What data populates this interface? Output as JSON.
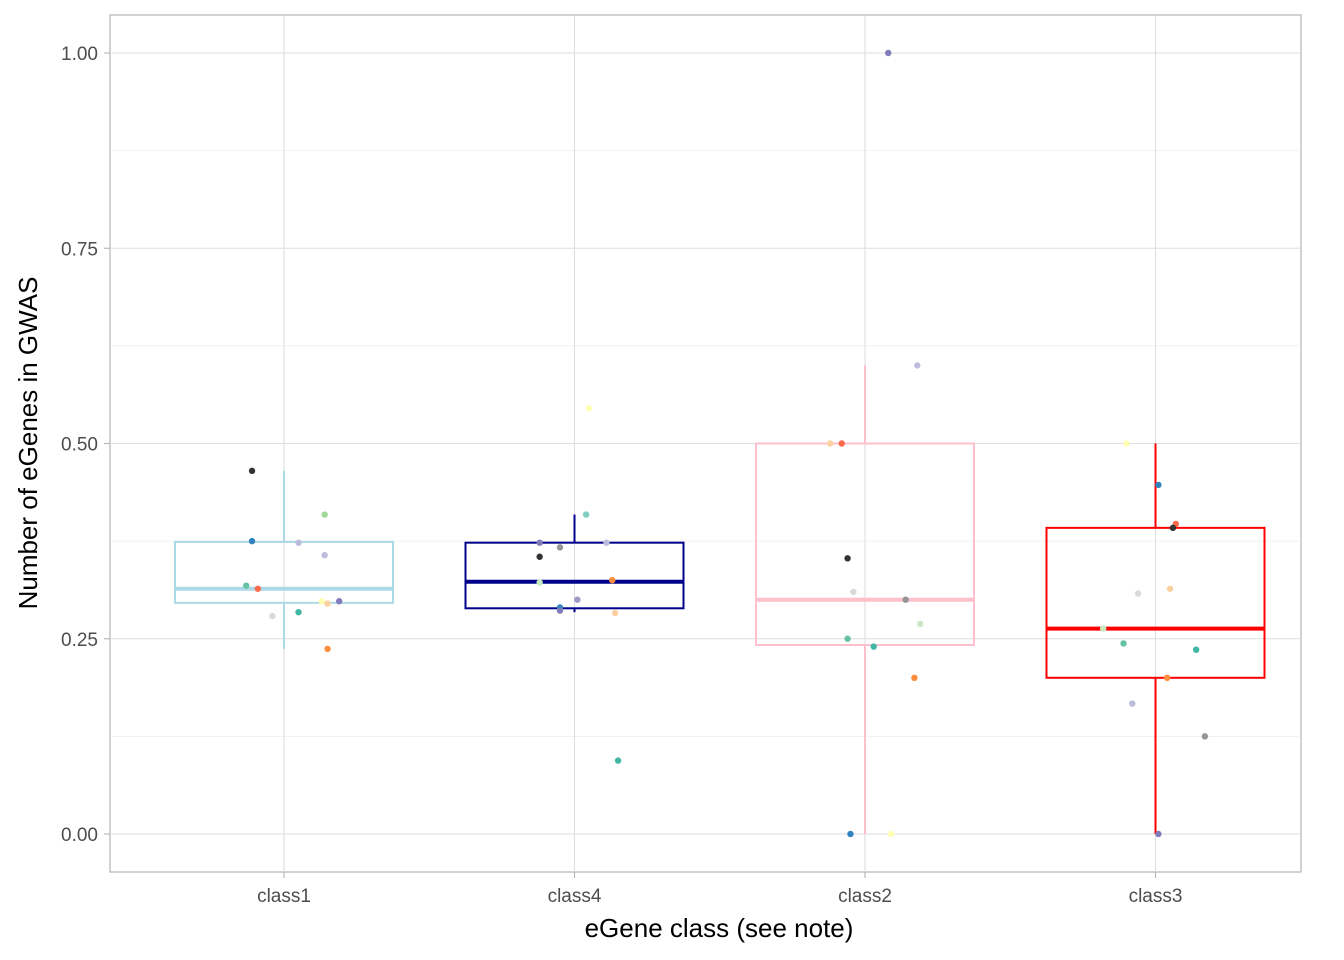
{
  "chart_data": {
    "type": "boxplot",
    "xlabel": "eGene class (see note)",
    "ylabel": "Number of eGenes in GWAS",
    "ylim": [
      -0.05,
      1.05
    ],
    "yticks": [
      "0.00",
      "0.25",
      "0.50",
      "0.75",
      "1.00"
    ],
    "categories": [
      "class1",
      "class4",
      "class2",
      "class3"
    ],
    "grid": true,
    "legend": "none",
    "boxes": [
      {
        "name": "class1",
        "color": "#add8e6",
        "whisker_low": 0.237,
        "q1": 0.296,
        "median": 0.314,
        "q3": 0.374,
        "whisker_high": 0.465
      },
      {
        "name": "class4",
        "color": "#00008b",
        "whisker_low": 0.284,
        "q1": 0.289,
        "median": 0.323,
        "q3": 0.373,
        "whisker_high": 0.409
      },
      {
        "name": "class2",
        "color": "#ffc0cb",
        "whisker_low": 0.0,
        "q1": 0.242,
        "median": 0.3,
        "q3": 0.5,
        "whisker_high": 0.6
      },
      {
        "name": "class3",
        "color": "#ff0000",
        "whisker_low": 0.0,
        "q1": 0.2,
        "median": 0.263,
        "q3": 0.392,
        "whisker_high": 0.5
      }
    ],
    "points": [
      {
        "category": "class1",
        "jitter": -0.11,
        "y": 0.465,
        "color": "#333333"
      },
      {
        "category": "class1",
        "jitter": -0.11,
        "y": 0.375,
        "color": "#3182bd"
      },
      {
        "category": "class1",
        "jitter": 0.05,
        "y": 0.373,
        "color": "#bcbddc"
      },
      {
        "category": "class1",
        "jitter": 0.14,
        "y": 0.409,
        "color": "#a1d99b"
      },
      {
        "category": "class1",
        "jitter": 0.14,
        "y": 0.357,
        "color": "#bcbddc"
      },
      {
        "category": "class1",
        "jitter": -0.13,
        "y": 0.318,
        "color": "#66c2a5"
      },
      {
        "category": "class1",
        "jitter": -0.09,
        "y": 0.314,
        "color": "#fb6a4a"
      },
      {
        "category": "class1",
        "jitter": 0.13,
        "y": 0.298,
        "color": "#ffffb3"
      },
      {
        "category": "class1",
        "jitter": 0.15,
        "y": 0.295,
        "color": "#fdd0a2"
      },
      {
        "category": "class1",
        "jitter": 0.19,
        "y": 0.298,
        "color": "#807dba"
      },
      {
        "category": "class1",
        "jitter": 0.05,
        "y": 0.284,
        "color": "#41b6a4"
      },
      {
        "category": "class1",
        "jitter": -0.04,
        "y": 0.279,
        "color": "#d9d9d9"
      },
      {
        "category": "class1",
        "jitter": 0.15,
        "y": 0.237,
        "color": "#fd8d3c"
      },
      {
        "category": "class4",
        "jitter": 0.05,
        "y": 0.545,
        "color": "#ffffb3"
      },
      {
        "category": "class4",
        "jitter": 0.04,
        "y": 0.409,
        "color": "#80cdc1"
      },
      {
        "category": "class4",
        "jitter": -0.12,
        "y": 0.355,
        "color": "#333333"
      },
      {
        "category": "class4",
        "jitter": -0.12,
        "y": 0.322,
        "color": "#c7e9c0"
      },
      {
        "category": "class4",
        "jitter": -0.12,
        "y": 0.373,
        "color": "#807dba"
      },
      {
        "category": "class4",
        "jitter": -0.05,
        "y": 0.367,
        "color": "#969696"
      },
      {
        "category": "class4",
        "jitter": 0.11,
        "y": 0.373,
        "color": "#bcbddc"
      },
      {
        "category": "class4",
        "jitter": 0.13,
        "y": 0.325,
        "color": "#fd8d3c"
      },
      {
        "category": "class4",
        "jitter": 0.01,
        "y": 0.3,
        "color": "#9e9ac8"
      },
      {
        "category": "class4",
        "jitter": -0.05,
        "y": 0.29,
        "color": "#3182bd"
      },
      {
        "category": "class4",
        "jitter": -0.05,
        "y": 0.286,
        "color": "#807dba"
      },
      {
        "category": "class4",
        "jitter": 0.14,
        "y": 0.283,
        "color": "#fdd0a2"
      },
      {
        "category": "class4",
        "jitter": 0.15,
        "y": 0.094,
        "color": "#41b6a4"
      },
      {
        "category": "class2",
        "jitter": 0.08,
        "y": 1.0,
        "color": "#807dba"
      },
      {
        "category": "class2",
        "jitter": 0.18,
        "y": 0.6,
        "color": "#bcbddc"
      },
      {
        "category": "class2",
        "jitter": -0.12,
        "y": 0.5,
        "color": "#fdd0a2"
      },
      {
        "category": "class2",
        "jitter": -0.08,
        "y": 0.5,
        "color": "#fb6a4a"
      },
      {
        "category": "class2",
        "jitter": -0.06,
        "y": 0.353,
        "color": "#333333"
      },
      {
        "category": "class2",
        "jitter": -0.04,
        "y": 0.31,
        "color": "#d9d9d9"
      },
      {
        "category": "class2",
        "jitter": 0.14,
        "y": 0.3,
        "color": "#969696"
      },
      {
        "category": "class2",
        "jitter": 0.19,
        "y": 0.269,
        "color": "#c7e9c0"
      },
      {
        "category": "class2",
        "jitter": -0.06,
        "y": 0.25,
        "color": "#66c2a5"
      },
      {
        "category": "class2",
        "jitter": 0.03,
        "y": 0.24,
        "color": "#41b6a4"
      },
      {
        "category": "class2",
        "jitter": 0.17,
        "y": 0.2,
        "color": "#fd8d3c"
      },
      {
        "category": "class2",
        "jitter": -0.05,
        "y": 0.0,
        "color": "#3182bd"
      },
      {
        "category": "class2",
        "jitter": 0.09,
        "y": 0.0,
        "color": "#ffffb3"
      },
      {
        "category": "class3",
        "jitter": -0.1,
        "y": 0.5,
        "color": "#ffffb3"
      },
      {
        "category": "class3",
        "jitter": 0.01,
        "y": 0.447,
        "color": "#3182bd"
      },
      {
        "category": "class3",
        "jitter": 0.07,
        "y": 0.397,
        "color": "#fb6a4a"
      },
      {
        "category": "class3",
        "jitter": 0.06,
        "y": 0.392,
        "color": "#333333"
      },
      {
        "category": "class3",
        "jitter": 0.05,
        "y": 0.314,
        "color": "#fdd0a2"
      },
      {
        "category": "class3",
        "jitter": -0.06,
        "y": 0.308,
        "color": "#d9d9d9"
      },
      {
        "category": "class3",
        "jitter": -0.18,
        "y": 0.263,
        "color": "#c7e9c0"
      },
      {
        "category": "class3",
        "jitter": -0.11,
        "y": 0.244,
        "color": "#66c2a5"
      },
      {
        "category": "class3",
        "jitter": 0.14,
        "y": 0.236,
        "color": "#41b6a4"
      },
      {
        "category": "class3",
        "jitter": 0.04,
        "y": 0.2,
        "color": "#fd8d3c"
      },
      {
        "category": "class3",
        "jitter": -0.08,
        "y": 0.167,
        "color": "#bcbddc"
      },
      {
        "category": "class3",
        "jitter": 0.17,
        "y": 0.125,
        "color": "#969696"
      },
      {
        "category": "class3",
        "jitter": 0.01,
        "y": 0.0,
        "color": "#807dba"
      }
    ]
  }
}
